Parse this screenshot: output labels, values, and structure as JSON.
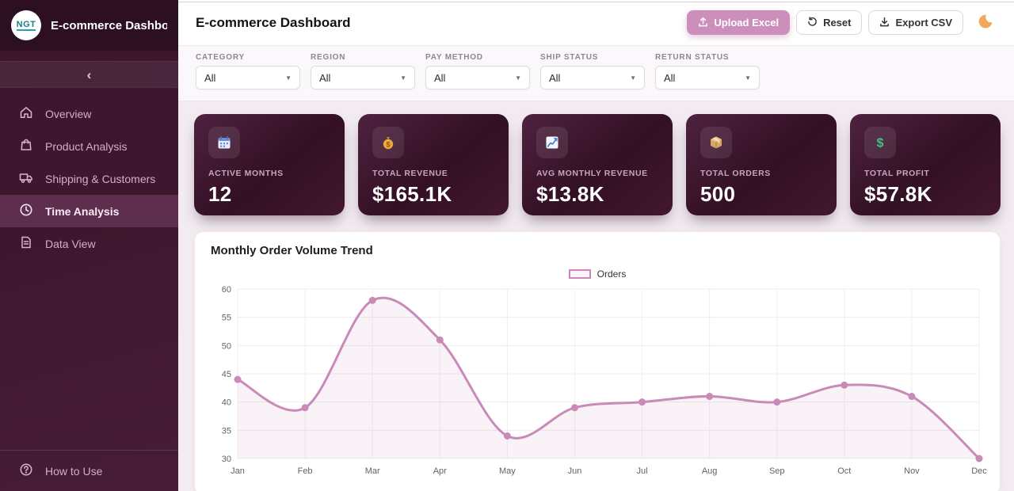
{
  "sidebar": {
    "logo_text": "NGT",
    "title": "E-commerce Dashboard",
    "collapse_icon": "‹",
    "items": [
      {
        "label": "Overview",
        "icon": "home-icon",
        "active": false
      },
      {
        "label": "Product Analysis",
        "icon": "shopping-bag-icon",
        "active": false
      },
      {
        "label": "Shipping & Customers",
        "icon": "truck-icon",
        "active": false
      },
      {
        "label": "Time Analysis",
        "icon": "clock-icon",
        "active": true
      },
      {
        "label": "Data View",
        "icon": "document-icon",
        "active": false
      }
    ],
    "footer_item": {
      "label": "How to Use",
      "icon": "help-icon"
    }
  },
  "header": {
    "title": "E-commerce Dashboard",
    "buttons": {
      "upload": "Upload Excel",
      "reset": "Reset",
      "export": "Export CSV"
    },
    "theme_toggle_icon": "moon-icon",
    "accent_color": "#cc8fbc",
    "moon_color": "#f3a75c"
  },
  "filters": [
    {
      "label": "CATEGORY",
      "value": "All"
    },
    {
      "label": "REGION",
      "value": "All"
    },
    {
      "label": "PAY METHOD",
      "value": "All"
    },
    {
      "label": "SHIP STATUS",
      "value": "All"
    },
    {
      "label": "RETURN STATUS",
      "value": "All"
    }
  ],
  "stats": [
    {
      "label": "ACTIVE MONTHS",
      "value": "12",
      "icon": "calendar-icon"
    },
    {
      "label": "TOTAL REVENUE",
      "value": "$165.1K",
      "icon": "money-bag-icon"
    },
    {
      "label": "AVG MONTHLY REVENUE",
      "value": "$13.8K",
      "icon": "chart-up-icon"
    },
    {
      "label": "TOTAL ORDERS",
      "value": "500",
      "icon": "package-icon"
    },
    {
      "label": "TOTAL PROFIT",
      "value": "$57.8K",
      "icon": "dollar-icon"
    }
  ],
  "chart_data": {
    "type": "line",
    "title": "Monthly Order Volume Trend",
    "categories": [
      "Jan",
      "Feb",
      "Mar",
      "Apr",
      "May",
      "Jun",
      "Jul",
      "Aug",
      "Sep",
      "Oct",
      "Nov",
      "Dec"
    ],
    "series": [
      {
        "name": "Orders",
        "values": [
          44,
          39,
          58,
          51,
          34,
          39,
          40,
          41,
          40,
          43,
          41,
          30
        ]
      }
    ],
    "ylim": [
      30,
      60
    ],
    "ytick_step": 5,
    "grid": true,
    "legend_position": "top-center",
    "line_color": "#c98ab8",
    "point_color": "#c98ab8",
    "fill_color": "rgba(201,138,184,0.10)",
    "smooth": true
  },
  "colors": {
    "sidebar_bg": "#3e172e",
    "sidebar_active": "#5d2e4e",
    "content_bg": "#f2ecf1",
    "card_bg": "#3d1630"
  }
}
